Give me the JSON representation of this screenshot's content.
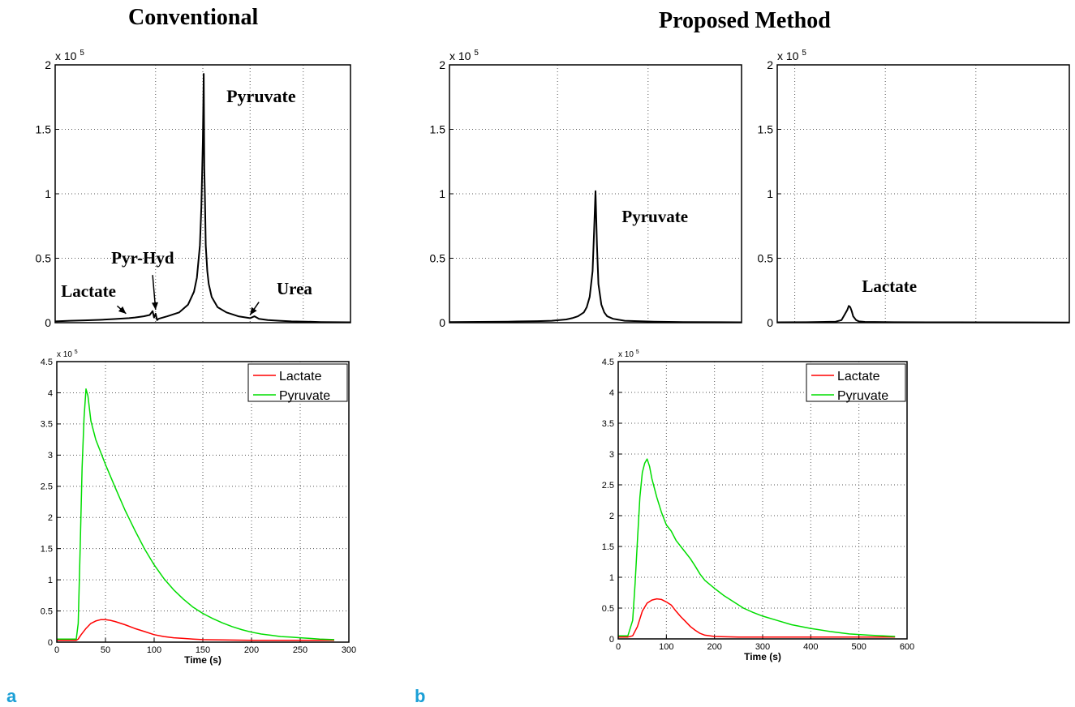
{
  "titles": {
    "left": "Conventional",
    "right": "Proposed Method"
  },
  "panel_letters": {
    "a": "a",
    "b": "b"
  },
  "chart_data": [
    {
      "id": "conv_spectrum",
      "type": "line",
      "exponent_label": "x 10",
      "exponent": "5",
      "ylim": [
        0,
        2
      ],
      "yticks": [
        0,
        0.5,
        1,
        1.5,
        2
      ],
      "xlim": [
        0,
        1
      ],
      "vgrid": [
        0.34,
        0.5,
        0.66,
        0.84
      ],
      "x_tick_labels": [],
      "grid": true,
      "color": "#000000",
      "x": [
        0,
        0.05,
        0.1,
        0.15,
        0.2,
        0.25,
        0.27,
        0.3,
        0.32,
        0.33,
        0.335,
        0.34,
        0.345,
        0.35,
        0.38,
        0.42,
        0.45,
        0.47,
        0.48,
        0.49,
        0.495,
        0.5,
        0.503,
        0.505,
        0.507,
        0.51,
        0.515,
        0.52,
        0.53,
        0.55,
        0.58,
        0.62,
        0.66,
        0.675,
        0.69,
        0.72,
        0.76,
        0.8,
        0.85,
        0.9,
        1.0
      ],
      "values": [
        0.01,
        0.015,
        0.018,
        0.022,
        0.028,
        0.035,
        0.04,
        0.05,
        0.06,
        0.09,
        0.04,
        0.07,
        0.02,
        0.03,
        0.05,
        0.08,
        0.14,
        0.24,
        0.35,
        0.6,
        0.9,
        1.4,
        1.93,
        1.2,
        1.0,
        0.6,
        0.4,
        0.3,
        0.2,
        0.12,
        0.08,
        0.05,
        0.035,
        0.05,
        0.03,
        0.02,
        0.015,
        0.01,
        0.008,
        0.005,
        0.003
      ],
      "annotations": [
        {
          "text": "Pyruvate",
          "tx": 0.58,
          "ty": 1.71,
          "size": 22
        },
        {
          "text": "Pyr-Hyd",
          "tx": 0.19,
          "ty": 0.46,
          "size": 21
        },
        {
          "text": "Lactate",
          "tx": 0.02,
          "ty": 0.2,
          "size": 21,
          "ax1": 0.21,
          "ay1": 0.13,
          "ax2": 0.24,
          "ay2": 0.07
        },
        {
          "text": "Urea",
          "tx": 0.75,
          "ty": 0.22,
          "size": 21,
          "ax1": 0.69,
          "ay1": 0.16,
          "ax2": 0.66,
          "ay2": 0.06
        }
      ],
      "arrows": [
        {
          "x1": 0.33,
          "y1": 0.37,
          "x2": 0.34,
          "y2": 0.1
        },
        {
          "x1": 0.21,
          "y1": 0.13,
          "x2": 0.24,
          "y2": 0.07
        },
        {
          "x1": 0.69,
          "y1": 0.16,
          "x2": 0.66,
          "y2": 0.06
        }
      ]
    },
    {
      "id": "prop_pyruvate_spectrum",
      "type": "line",
      "exponent_label": "x 10",
      "exponent": "5",
      "ylim": [
        0,
        2
      ],
      "yticks": [
        0,
        0.5,
        1,
        1.5,
        2
      ],
      "xlim": [
        0,
        1
      ],
      "vgrid": [
        0.37,
        0.68
      ],
      "x_tick_labels": [],
      "grid": true,
      "color": "#000000",
      "x": [
        0,
        0.1,
        0.2,
        0.3,
        0.35,
        0.4,
        0.42,
        0.44,
        0.46,
        0.47,
        0.48,
        0.49,
        0.495,
        0.5,
        0.505,
        0.51,
        0.52,
        0.53,
        0.54,
        0.56,
        0.6,
        0.7,
        0.8,
        1.0
      ],
      "values": [
        0.005,
        0.006,
        0.008,
        0.012,
        0.015,
        0.025,
        0.035,
        0.05,
        0.08,
        0.12,
        0.2,
        0.4,
        0.7,
        1.02,
        0.6,
        0.3,
        0.14,
        0.08,
        0.05,
        0.03,
        0.015,
        0.008,
        0.005,
        0.003
      ],
      "annotations": [
        {
          "text": "Pyruvate",
          "tx": 0.59,
          "ty": 0.78,
          "size": 21
        }
      ],
      "arrows": []
    },
    {
      "id": "prop_lactate_spectrum",
      "type": "line",
      "exponent_label": "x 10",
      "exponent": "5",
      "ylim": [
        0,
        2
      ],
      "yticks": [
        0,
        0.5,
        1,
        1.5,
        2
      ],
      "xlim": [
        0,
        1
      ],
      "vgrid": [
        0.06,
        0.37,
        0.68
      ],
      "x_tick_labels": [],
      "grid": true,
      "color": "#000000",
      "x": [
        0,
        0.1,
        0.2,
        0.22,
        0.23,
        0.24,
        0.245,
        0.25,
        0.255,
        0.26,
        0.27,
        0.28,
        0.3,
        0.4,
        0.6,
        1.0
      ],
      "values": [
        0.003,
        0.004,
        0.008,
        0.02,
        0.06,
        0.1,
        0.13,
        0.12,
        0.09,
        0.05,
        0.02,
        0.01,
        0.006,
        0.004,
        0.003,
        0.002
      ],
      "annotations": [
        {
          "text": "Lactate",
          "tx": 0.29,
          "ty": 0.24,
          "size": 21
        }
      ],
      "arrows": []
    },
    {
      "id": "conv_dynamics",
      "type": "line",
      "exponent_label": "x 10",
      "exponent": "5",
      "ylim": [
        0,
        4.5
      ],
      "yticks": [
        0,
        0.5,
        1,
        1.5,
        2,
        2.5,
        3,
        3.5,
        4,
        4.5
      ],
      "xlim": [
        0,
        300
      ],
      "xticks": [
        0,
        50,
        100,
        150,
        200,
        250,
        300
      ],
      "x_tick_labels": [
        "0",
        "50",
        "100",
        "150",
        "200",
        "250",
        "300"
      ],
      "xlabel": "Time (s)",
      "grid": true,
      "legend": {
        "position": "top-right",
        "entries": [
          "Lactate",
          "Pyruvate"
        ]
      },
      "series": [
        {
          "name": "Lactate",
          "color": "#ff0000",
          "x": [
            0,
            10,
            20,
            22,
            25,
            30,
            35,
            40,
            45,
            50,
            55,
            60,
            70,
            80,
            90,
            100,
            110,
            120,
            130,
            140,
            150,
            170,
            200,
            230,
            260,
            285
          ],
          "values": [
            0.03,
            0.03,
            0.03,
            0.05,
            0.12,
            0.22,
            0.3,
            0.34,
            0.36,
            0.36,
            0.35,
            0.33,
            0.28,
            0.22,
            0.17,
            0.12,
            0.09,
            0.07,
            0.06,
            0.05,
            0.04,
            0.035,
            0.03,
            0.03,
            0.03,
            0.03
          ]
        },
        {
          "name": "Pyruvate",
          "color": "#00dd00",
          "x": [
            0,
            10,
            20,
            22,
            24,
            26,
            28,
            30,
            32,
            35,
            40,
            45,
            50,
            60,
            70,
            80,
            90,
            100,
            110,
            120,
            130,
            140,
            150,
            160,
            170,
            180,
            190,
            200,
            210,
            220,
            230,
            240,
            250,
            260,
            270,
            285
          ],
          "values": [
            0.05,
            0.05,
            0.05,
            0.3,
            1.5,
            2.8,
            3.6,
            4.06,
            3.95,
            3.55,
            3.25,
            3.05,
            2.85,
            2.48,
            2.12,
            1.8,
            1.5,
            1.24,
            1.02,
            0.84,
            0.69,
            0.56,
            0.46,
            0.38,
            0.31,
            0.25,
            0.2,
            0.16,
            0.13,
            0.11,
            0.09,
            0.08,
            0.07,
            0.06,
            0.05,
            0.04
          ]
        }
      ]
    },
    {
      "id": "prop_dynamics",
      "type": "line",
      "exponent_label": "x 10",
      "exponent": "5",
      "ylim": [
        0,
        4.5
      ],
      "yticks": [
        0,
        0.5,
        1,
        1.5,
        2,
        2.5,
        3,
        3.5,
        4,
        4.5
      ],
      "xlim": [
        0,
        600
      ],
      "xticks": [
        0,
        100,
        200,
        300,
        400,
        500,
        600
      ],
      "x_tick_labels": [
        "0",
        "100",
        "200",
        "300",
        "400",
        "500",
        "600"
      ],
      "xlabel": "Time (s)",
      "grid": true,
      "legend": {
        "position": "top-right",
        "entries": [
          "Lactate",
          "Pyruvate"
        ]
      },
      "series": [
        {
          "name": "Lactate",
          "color": "#ff0000",
          "x": [
            0,
            20,
            30,
            40,
            50,
            60,
            70,
            80,
            90,
            100,
            110,
            120,
            130,
            140,
            150,
            160,
            170,
            180,
            200,
            250,
            300,
            400,
            500,
            575
          ],
          "values": [
            0.03,
            0.03,
            0.05,
            0.2,
            0.45,
            0.58,
            0.63,
            0.65,
            0.64,
            0.6,
            0.55,
            0.45,
            0.36,
            0.28,
            0.2,
            0.14,
            0.09,
            0.06,
            0.04,
            0.03,
            0.03,
            0.03,
            0.03,
            0.03
          ]
        },
        {
          "name": "Pyruvate",
          "color": "#00dd00",
          "x": [
            0,
            20,
            30,
            35,
            40,
            45,
            50,
            55,
            60,
            65,
            70,
            80,
            90,
            100,
            110,
            120,
            130,
            140,
            150,
            160,
            170,
            180,
            200,
            220,
            240,
            260,
            280,
            300,
            330,
            360,
            400,
            440,
            480,
            520,
            575
          ],
          "values": [
            0.05,
            0.05,
            0.3,
            0.9,
            1.6,
            2.3,
            2.7,
            2.85,
            2.92,
            2.8,
            2.6,
            2.3,
            2.05,
            1.85,
            1.75,
            1.6,
            1.5,
            1.4,
            1.3,
            1.18,
            1.05,
            0.95,
            0.82,
            0.7,
            0.6,
            0.5,
            0.43,
            0.37,
            0.3,
            0.23,
            0.17,
            0.12,
            0.08,
            0.06,
            0.04
          ]
        }
      ]
    }
  ]
}
